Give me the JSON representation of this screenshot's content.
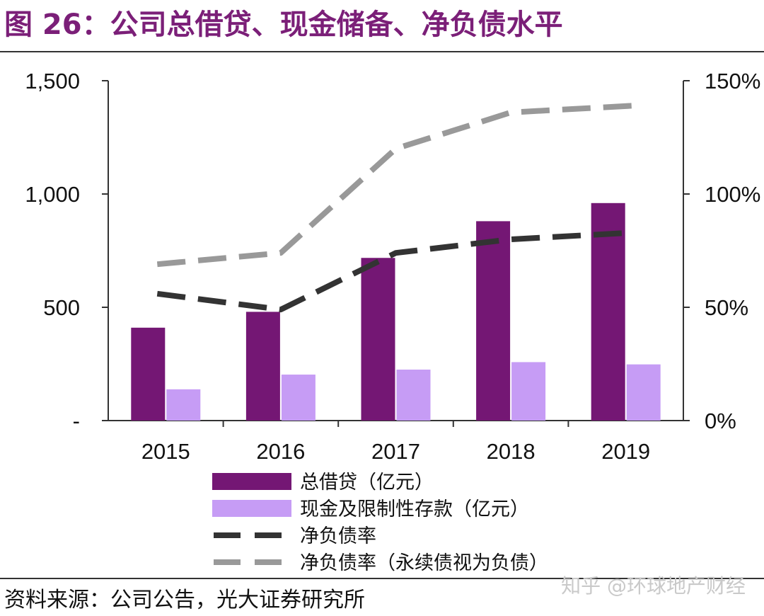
{
  "header": {
    "title": "图 26：公司总借贷、现金储备、净负债水平"
  },
  "footer": {
    "source": "资料来源：公司公告，光大证券研究所",
    "watermark": "知乎 @环球地产财经"
  },
  "colors": {
    "bar1": "#741774",
    "bar2": "#c69cf5",
    "line1": "#333333",
    "line2": "#999999"
  },
  "chart_data": {
    "type": "bar",
    "categories": [
      "2015",
      "2016",
      "2017",
      "2018",
      "2019"
    ],
    "series": [
      {
        "name": "总借贷（亿元）",
        "type": "bar",
        "axis": "left",
        "values": [
          410,
          480,
          718,
          880,
          960
        ]
      },
      {
        "name": "现金及限制性存款（亿元）",
        "type": "bar",
        "axis": "left",
        "values": [
          138,
          203,
          225,
          258,
          248
        ]
      },
      {
        "name": "净负债率",
        "type": "line",
        "style": "dashed",
        "axis": "right",
        "values": [
          56,
          49,
          74,
          80,
          83
        ]
      },
      {
        "name": "净负债率（永续债视为负债）",
        "type": "line",
        "style": "dashed",
        "axis": "right",
        "values": [
          69,
          74,
          120,
          136,
          139
        ]
      }
    ],
    "yleft": {
      "min": 0,
      "max": 1500,
      "ticks": [
        "-",
        "500",
        "1,000",
        "1,500"
      ],
      "tick_values": [
        0,
        500,
        1000,
        1500
      ]
    },
    "yright": {
      "min": 0,
      "max": 150,
      "ticks": [
        "0%",
        "50%",
        "100%",
        "150%"
      ],
      "tick_values": [
        0,
        50,
        100,
        150
      ]
    },
    "grid": false,
    "legend_position": "bottom"
  }
}
